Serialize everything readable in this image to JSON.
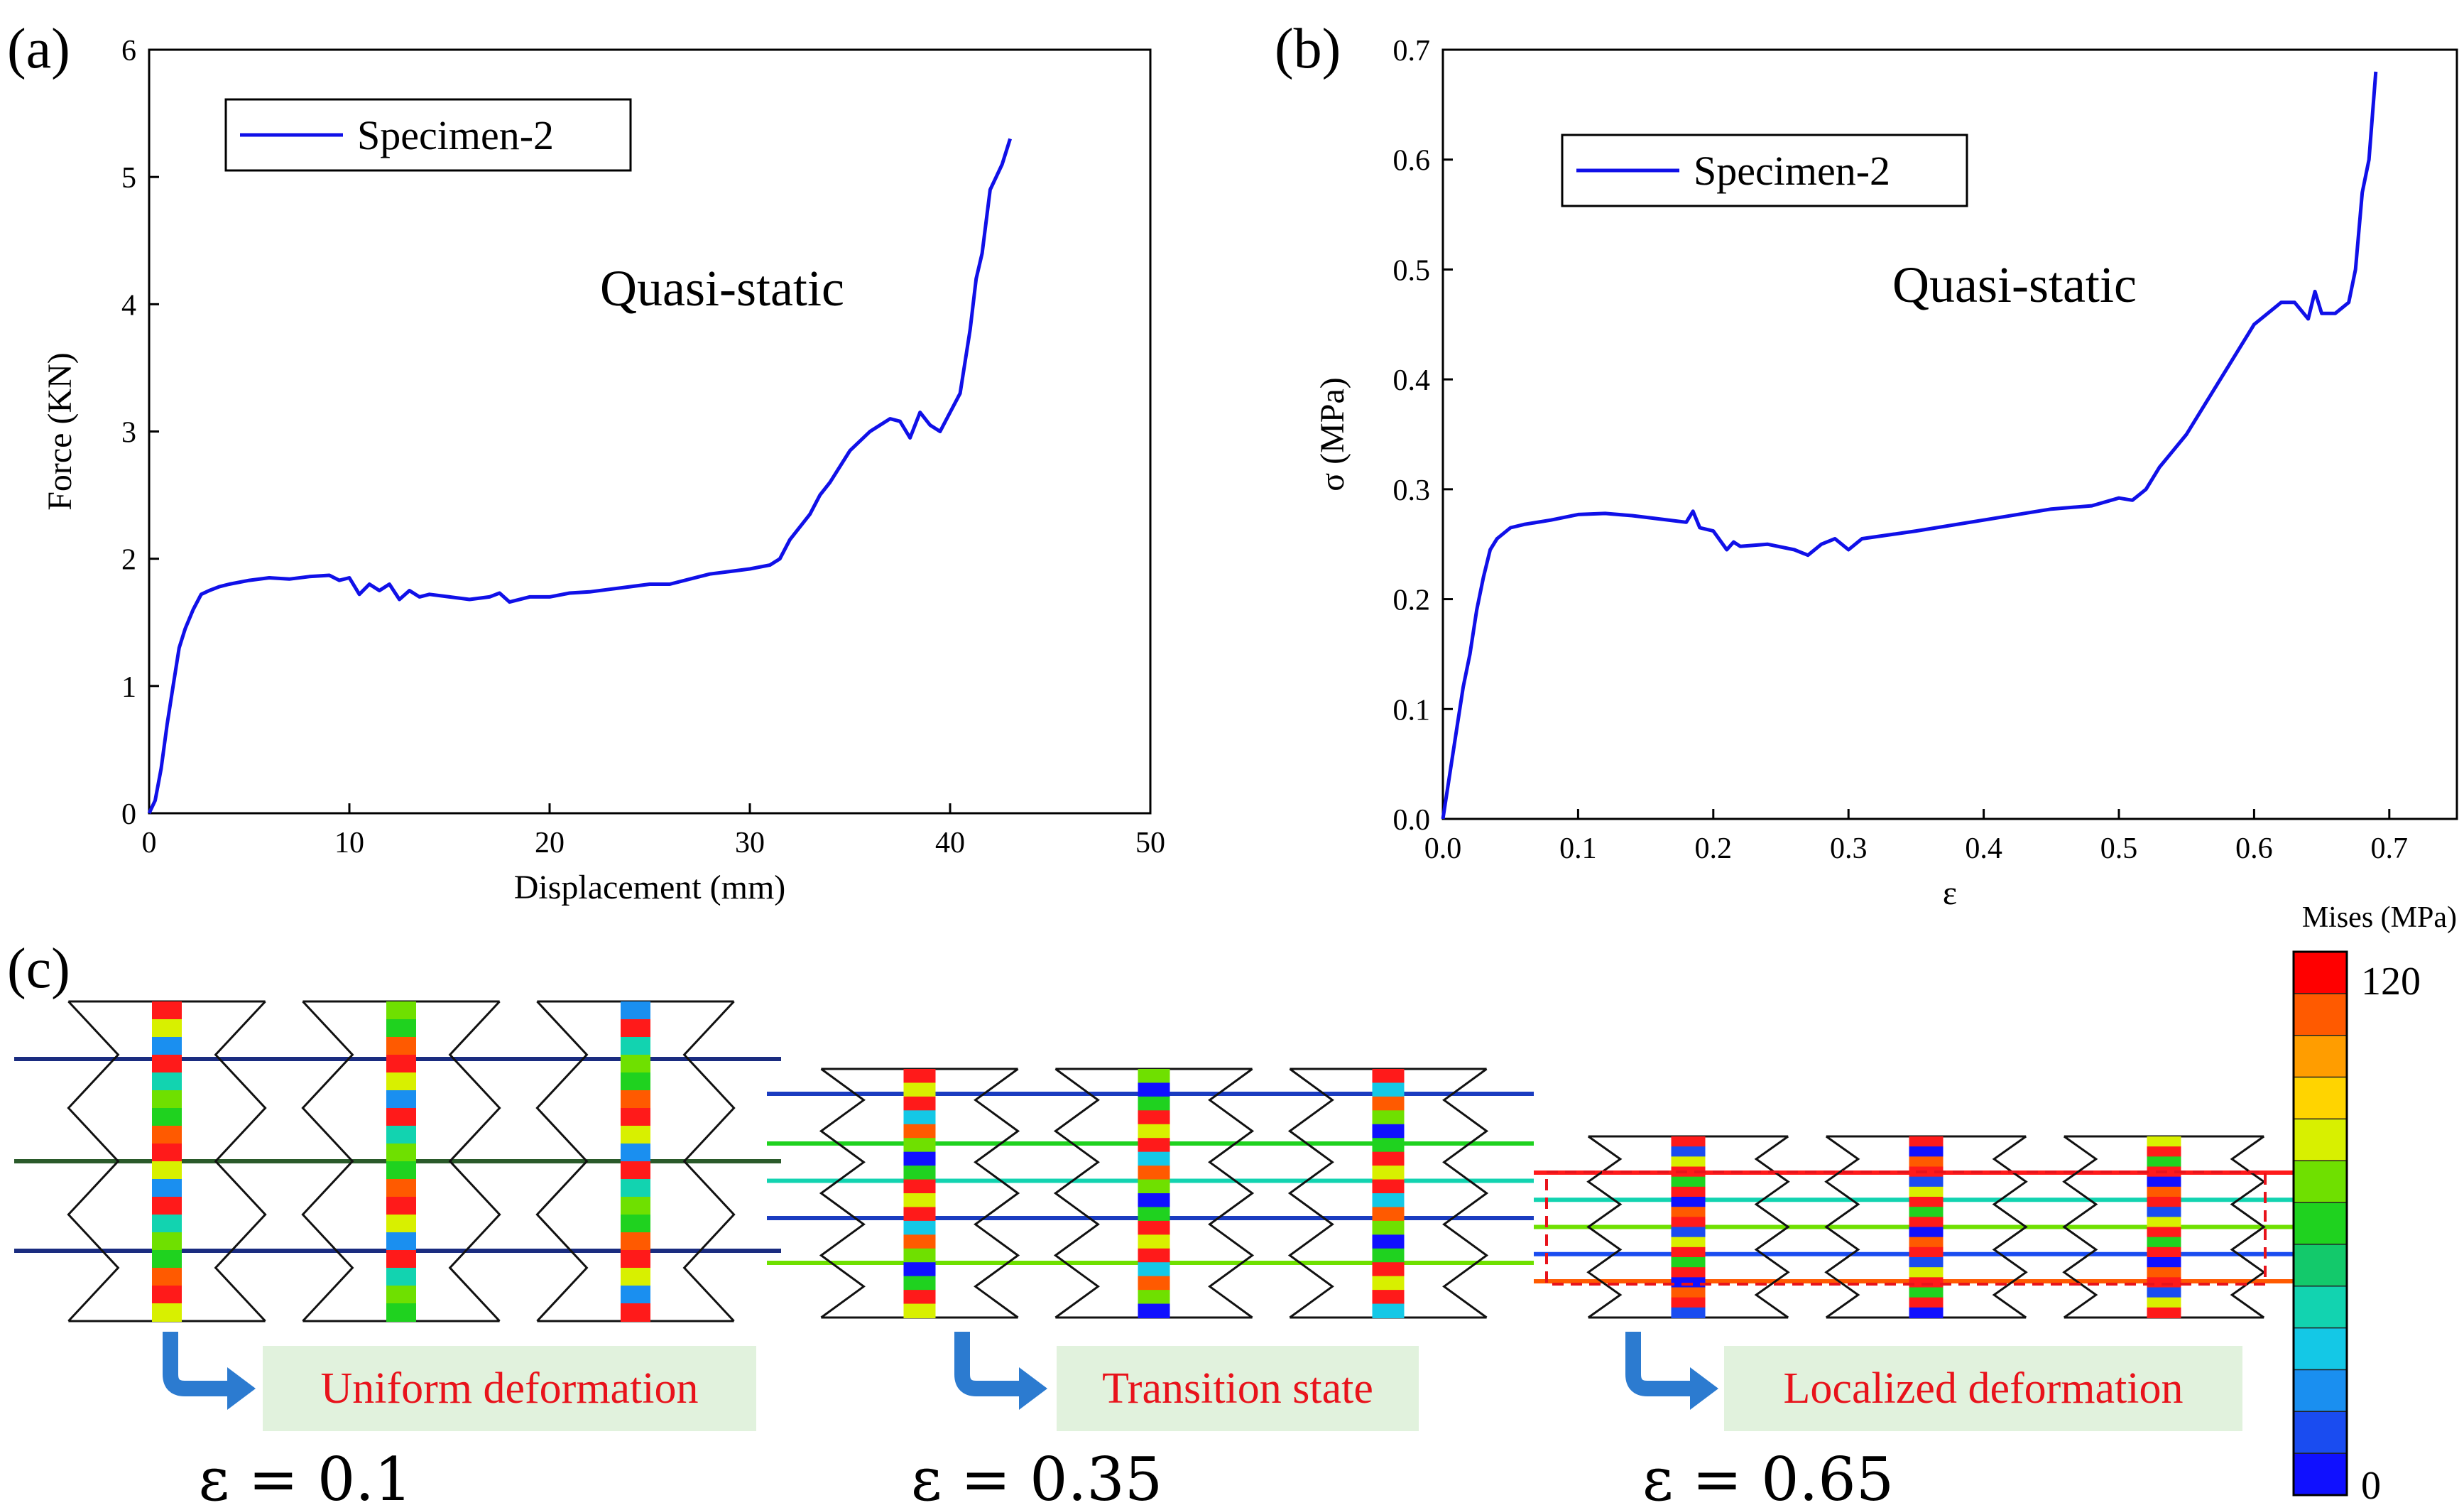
{
  "panel_a": {
    "label": "(a)",
    "annotation": "Quasi-static"
  },
  "panel_b": {
    "label": "(b)",
    "annotation": "Quasi-static"
  },
  "panel_c": {
    "label": "(c)",
    "states": [
      {
        "text": "Uniform deformation",
        "strain_label": "ε = 0.1"
      },
      {
        "text": "Transition state",
        "strain_label": "ε = 0.35"
      },
      {
        "text": "Localized deformation",
        "strain_label": "ε = 0.65"
      }
    ],
    "colorbar": {
      "title": "Mises (MPa)",
      "max_label": "120",
      "min_label": "0",
      "colors": [
        "#ff0000",
        "#ff5a00",
        "#ff9d00",
        "#ffd400",
        "#d8f000",
        "#6fe000",
        "#1fd21f",
        "#13c96b",
        "#12d3b0",
        "#14c8e6",
        "#1a8ff0",
        "#1a4cf0",
        "#1010ff"
      ]
    },
    "colors": {
      "state_box": "#e1f2dd",
      "arrow": "#2c7bd0",
      "highlight_box": "#e8131b"
    }
  },
  "chart_data": [
    {
      "type": "line",
      "title": "",
      "xlabel": "Displacement (mm)",
      "ylabel": "Force (KN)",
      "xlim": [
        0,
        50
      ],
      "ylim": [
        0,
        6
      ],
      "xticks": [
        "0",
        "10",
        "20",
        "30",
        "40",
        "50"
      ],
      "yticks": [
        "0",
        "1",
        "2",
        "3",
        "4",
        "5",
        "6"
      ],
      "legend": "top-left",
      "grid": false,
      "series": [
        {
          "name": "Specimen-2",
          "color": "#1010e8",
          "x": [
            0,
            0.3,
            0.6,
            0.9,
            1.2,
            1.5,
            1.8,
            2.2,
            2.6,
            3,
            3.5,
            4,
            5,
            6,
            7,
            8,
            9,
            9.5,
            10,
            10.5,
            11,
            11.5,
            12,
            12.5,
            13,
            13.5,
            14,
            15,
            16,
            17,
            17.5,
            18,
            19,
            20,
            21,
            22,
            23,
            24,
            25,
            26,
            27,
            28,
            29,
            30,
            31,
            31.5,
            32,
            33,
            33.5,
            34,
            35,
            36,
            37,
            37.5,
            38,
            38.5,
            39,
            39.5,
            40,
            40.5,
            41,
            41.3,
            41.6,
            42,
            42.3,
            42.6,
            43
          ],
          "y": [
            0,
            0.1,
            0.35,
            0.7,
            1.0,
            1.3,
            1.45,
            1.6,
            1.72,
            1.75,
            1.78,
            1.8,
            1.83,
            1.85,
            1.84,
            1.86,
            1.87,
            1.83,
            1.85,
            1.72,
            1.8,
            1.75,
            1.8,
            1.68,
            1.75,
            1.7,
            1.72,
            1.7,
            1.68,
            1.7,
            1.73,
            1.66,
            1.7,
            1.7,
            1.73,
            1.74,
            1.76,
            1.78,
            1.8,
            1.8,
            1.84,
            1.88,
            1.9,
            1.92,
            1.95,
            2.0,
            2.15,
            2.35,
            2.5,
            2.6,
            2.85,
            3.0,
            3.1,
            3.08,
            2.95,
            3.15,
            3.05,
            3.0,
            3.15,
            3.3,
            3.8,
            4.2,
            4.4,
            4.9,
            5.0,
            5.1,
            5.3
          ]
        }
      ]
    },
    {
      "type": "line",
      "title": "",
      "xlabel": "ε",
      "ylabel": "σ (MPa)",
      "xlim": [
        0,
        0.75
      ],
      "ylim": [
        0,
        0.7
      ],
      "xticks": [
        "0.0",
        "0.1",
        "0.2",
        "0.3",
        "0.4",
        "0.5",
        "0.6",
        "0.7"
      ],
      "yticks": [
        "0.0",
        "0.1",
        "0.2",
        "0.3",
        "0.4",
        "0.5",
        "0.6",
        "0.7"
      ],
      "legend": "top-left",
      "grid": false,
      "series": [
        {
          "name": "Specimen-2",
          "color": "#1010e8",
          "x": [
            0,
            0.005,
            0.01,
            0.015,
            0.02,
            0.025,
            0.03,
            0.035,
            0.04,
            0.05,
            0.06,
            0.08,
            0.1,
            0.12,
            0.14,
            0.16,
            0.18,
            0.185,
            0.19,
            0.2,
            0.21,
            0.215,
            0.22,
            0.24,
            0.26,
            0.27,
            0.28,
            0.29,
            0.3,
            0.31,
            0.35,
            0.4,
            0.45,
            0.48,
            0.5,
            0.51,
            0.52,
            0.53,
            0.54,
            0.55,
            0.56,
            0.58,
            0.6,
            0.62,
            0.63,
            0.64,
            0.645,
            0.65,
            0.66,
            0.67,
            0.675,
            0.68,
            0.685,
            0.69
          ],
          "y": [
            0,
            0.04,
            0.08,
            0.12,
            0.15,
            0.19,
            0.22,
            0.245,
            0.255,
            0.265,
            0.268,
            0.272,
            0.277,
            0.278,
            0.276,
            0.273,
            0.27,
            0.28,
            0.265,
            0.262,
            0.245,
            0.252,
            0.248,
            0.25,
            0.245,
            0.24,
            0.25,
            0.255,
            0.245,
            0.255,
            0.262,
            0.272,
            0.282,
            0.285,
            0.292,
            0.29,
            0.3,
            0.32,
            0.335,
            0.35,
            0.37,
            0.41,
            0.45,
            0.47,
            0.47,
            0.455,
            0.48,
            0.46,
            0.46,
            0.47,
            0.5,
            0.57,
            0.6,
            0.68
          ]
        }
      ]
    }
  ]
}
